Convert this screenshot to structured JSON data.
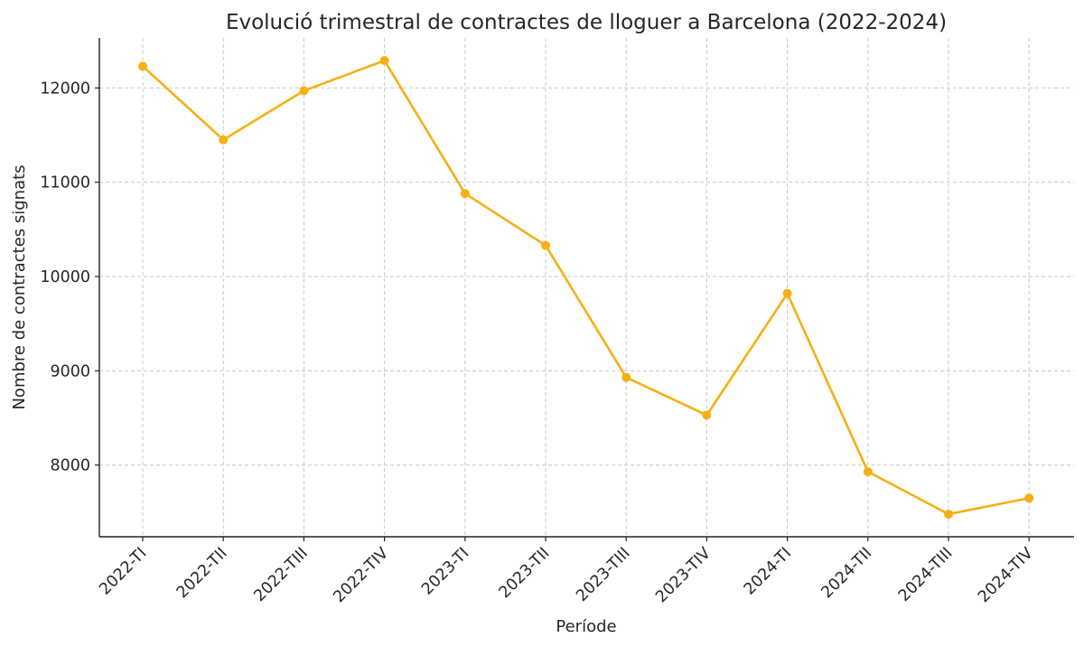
{
  "chart_data": {
    "type": "line",
    "title": "Evolució trimestral de contractes de lloguer a Barcelona (2022-2024)",
    "xlabel": "Període",
    "ylabel": "Nombre de contractes signats",
    "categories": [
      "2022-TI",
      "2022-TII",
      "2022-TIII",
      "2022-TIV",
      "2023-TI",
      "2023-TII",
      "2023-TIII",
      "2023-TIV",
      "2024-TI",
      "2024-TII",
      "2024-TIII",
      "2024-TIV"
    ],
    "series": [
      {
        "values": [
          12230,
          11450,
          11970,
          12290,
          10880,
          10330,
          8930,
          8530,
          9820,
          7930,
          7480,
          7650
        ],
        "color": "#f5b014"
      }
    ],
    "yticks": [
      8000,
      9000,
      10000,
      11000,
      12000
    ],
    "ylim": [
      7240,
      12530
    ],
    "grid": true,
    "legend": "none"
  }
}
